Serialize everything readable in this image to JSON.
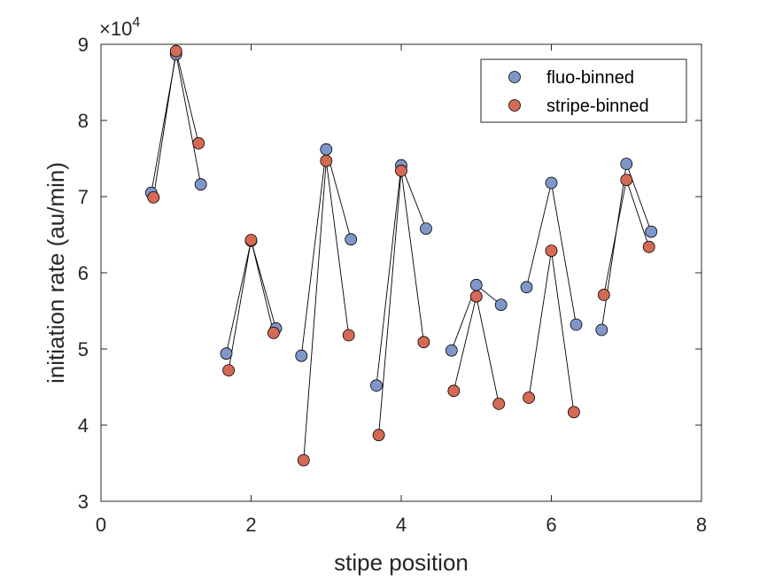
{
  "chart_data": {
    "type": "scatter",
    "xlabel": "stipe position",
    "ylabel": "initiation rate (au/min)",
    "exponent": {
      "prefix": "×10",
      "power": "4"
    },
    "xlim": [
      0,
      8
    ],
    "ylim": [
      30000,
      90000
    ],
    "xticks": [
      0,
      2,
      4,
      6,
      8
    ],
    "yticks": [
      30000,
      40000,
      50000,
      60000,
      70000,
      80000,
      90000
    ],
    "xtick_labels": [
      "0",
      "2",
      "4",
      "6",
      "8"
    ],
    "ytick_labels": [
      "3",
      "4",
      "5",
      "6",
      "7",
      "8",
      "9"
    ],
    "grid": false,
    "legend_position": "top-right",
    "lines_connect_points_within_group": true,
    "series": [
      {
        "name": "fluo-binned",
        "color": "#7f96c8",
        "points": [
          [
            0.67,
            70500
          ],
          [
            1.0,
            88700
          ],
          [
            1.33,
            71600
          ],
          [
            1.67,
            49400
          ],
          [
            2.0,
            64200
          ],
          [
            2.33,
            52700
          ],
          [
            2.67,
            49100
          ],
          [
            3.0,
            76200
          ],
          [
            3.33,
            64400
          ],
          [
            3.67,
            45200
          ],
          [
            4.0,
            74100
          ],
          [
            4.33,
            65800
          ],
          [
            4.67,
            49800
          ],
          [
            5.0,
            58400
          ],
          [
            5.33,
            55800
          ],
          [
            5.67,
            58100
          ],
          [
            6.0,
            71800
          ],
          [
            6.33,
            53200
          ],
          [
            6.67,
            52500
          ],
          [
            7.0,
            74300
          ],
          [
            7.33,
            65400
          ]
        ]
      },
      {
        "name": "stripe-binned",
        "color": "#d46a55",
        "points": [
          [
            0.7,
            69900
          ],
          [
            1.0,
            89100
          ],
          [
            1.3,
            77000
          ],
          [
            1.7,
            47200
          ],
          [
            2.0,
            64300
          ],
          [
            2.3,
            52100
          ],
          [
            2.7,
            35400
          ],
          [
            3.0,
            74700
          ],
          [
            3.3,
            51800
          ],
          [
            3.7,
            38700
          ],
          [
            4.0,
            73400
          ],
          [
            4.3,
            50900
          ],
          [
            4.7,
            44500
          ],
          [
            5.0,
            56900
          ],
          [
            5.3,
            42800
          ],
          [
            5.7,
            43600
          ],
          [
            6.0,
            62900
          ],
          [
            6.3,
            41700
          ],
          [
            6.7,
            57100
          ],
          [
            7.0,
            72200
          ],
          [
            7.3,
            63400
          ]
        ]
      }
    ]
  }
}
